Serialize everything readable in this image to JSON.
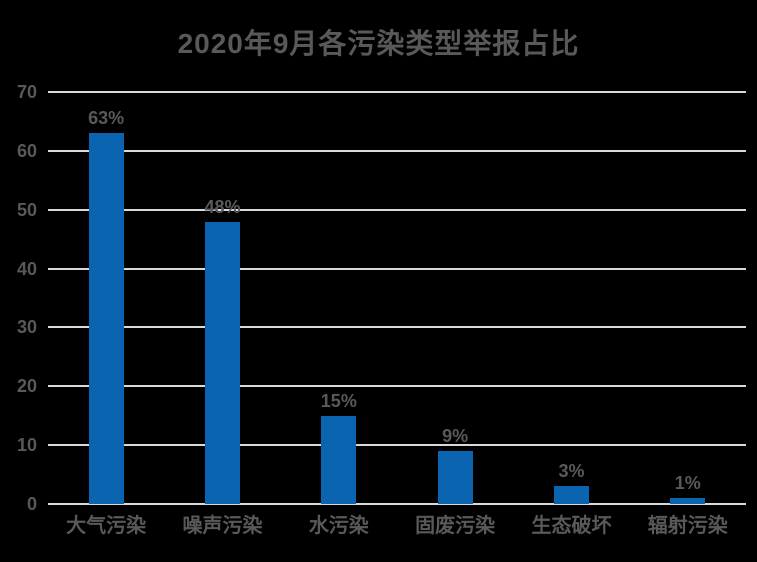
{
  "title": "2020年9月各污染类型举报占比",
  "colors": {
    "background": "#000000",
    "bar": "#0A64B0",
    "text": "#595959",
    "gridline": "#D9D9D9",
    "axis_line": "#D9D9D9"
  },
  "chart_data": {
    "type": "bar",
    "title": "2020年9月各污染类型举报占比",
    "categories": [
      "大气污染",
      "噪声污染",
      "水污染",
      "固废污染",
      "生态破坏",
      "辐射污染"
    ],
    "values": [
      63,
      48,
      15,
      9,
      3,
      1
    ],
    "data_labels": [
      "63%",
      "48%",
      "15%",
      "9%",
      "3%",
      "1%"
    ],
    "xlabel": "",
    "ylabel": "",
    "ylim": [
      0,
      70
    ],
    "yticks": [
      0,
      10,
      20,
      30,
      40,
      50,
      60,
      70
    ],
    "grid": true,
    "legend_position": "none",
    "single_series_color": "#0A64B0"
  }
}
